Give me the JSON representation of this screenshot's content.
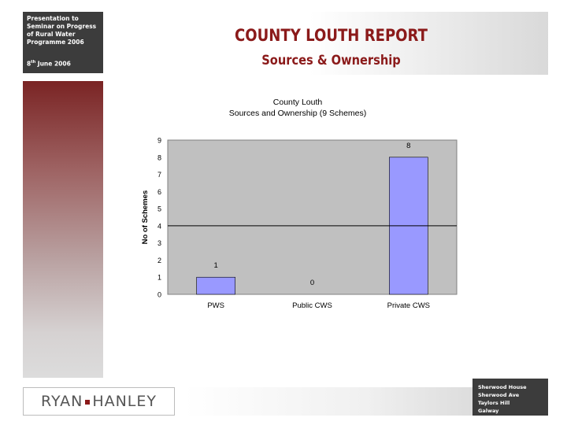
{
  "header": {
    "presentation_lines": [
      "Presentation to",
      "Seminar on Progress",
      "of Rural Water",
      "Programme 2006"
    ],
    "date_day": "8",
    "date_suffix": "th",
    "date_rest": " June 2006",
    "title": "COUNTY LOUTH REPORT",
    "subtitle": "Sources & Ownership"
  },
  "footer": {
    "logo_left": "RYAN",
    "logo_right": "HANLEY",
    "address_lines": [
      "Sherwood House",
      "Sherwood Ave",
      "Taylors Hill",
      "Galway"
    ]
  },
  "colors": {
    "title": "#8b1a1a",
    "bar_fill": "#9999ff",
    "plot_bg": "#c0c0c0"
  },
  "chart_data": {
    "type": "bar",
    "title": "County Louth",
    "subtitle": "Sources and Ownership (9 Schemes)",
    "xlabel": "",
    "ylabel": "No of Schemes",
    "categories": [
      "PWS",
      "Public CWS",
      "Private CWS"
    ],
    "values": [
      1,
      0,
      8
    ],
    "data_labels": [
      "1",
      "0",
      "8"
    ],
    "ylim": [
      0,
      9
    ],
    "yticks": [
      0,
      1,
      2,
      3,
      4,
      5,
      6,
      7,
      8,
      9
    ],
    "reference_line": 4,
    "grid": false,
    "legend": "none"
  }
}
